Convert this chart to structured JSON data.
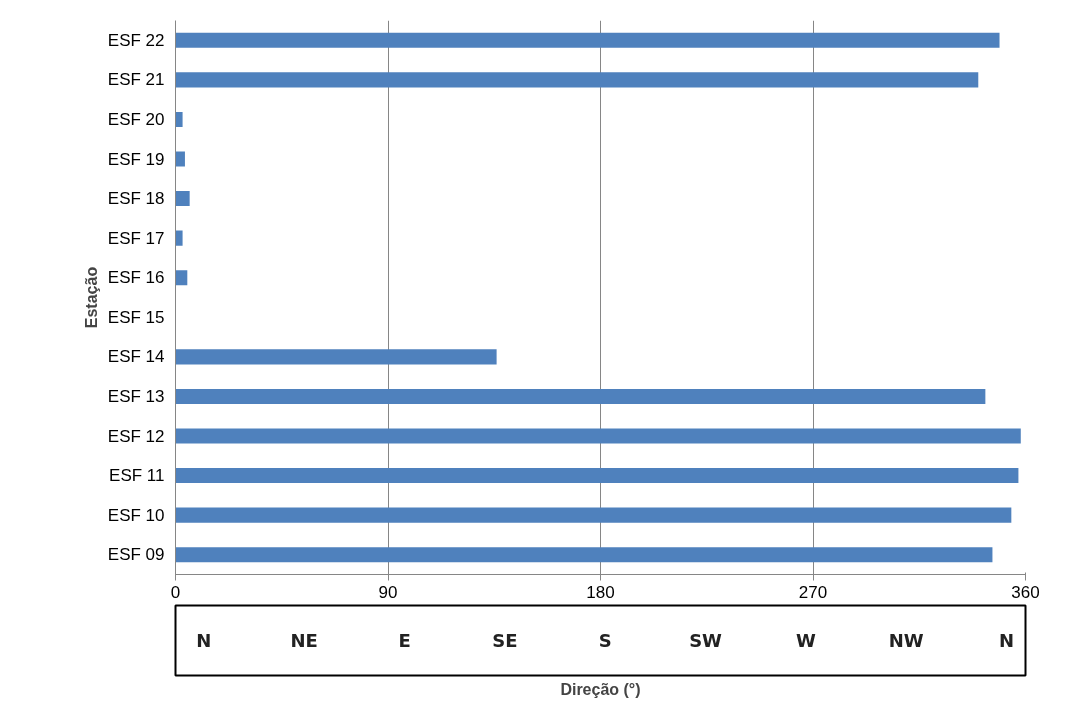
{
  "chart_data": {
    "type": "bar",
    "orientation": "horizontal",
    "categories": [
      "ESF 22",
      "ESF 21",
      "ESF 20",
      "ESF 19",
      "ESF 18",
      "ESF 17",
      "ESF 16",
      "ESF 15",
      "ESF 14",
      "ESF 13",
      "ESF 12",
      "ESF 11",
      "ESF 10",
      "ESF 09"
    ],
    "values": [
      349,
      340,
      3,
      4,
      6,
      3,
      5,
      0,
      136,
      343,
      358,
      357,
      354,
      346
    ],
    "color": "#4f81bd",
    "xlim": [
      0,
      360
    ],
    "xticks": [
      0,
      90,
      180,
      270,
      360
    ],
    "grid": "x",
    "xlabel": "Direção (°)",
    "ylabel": "Estação",
    "annotations": [
      "N",
      "NE",
      "E",
      "SE",
      "S",
      "SW",
      "W",
      "NW",
      "N"
    ]
  }
}
